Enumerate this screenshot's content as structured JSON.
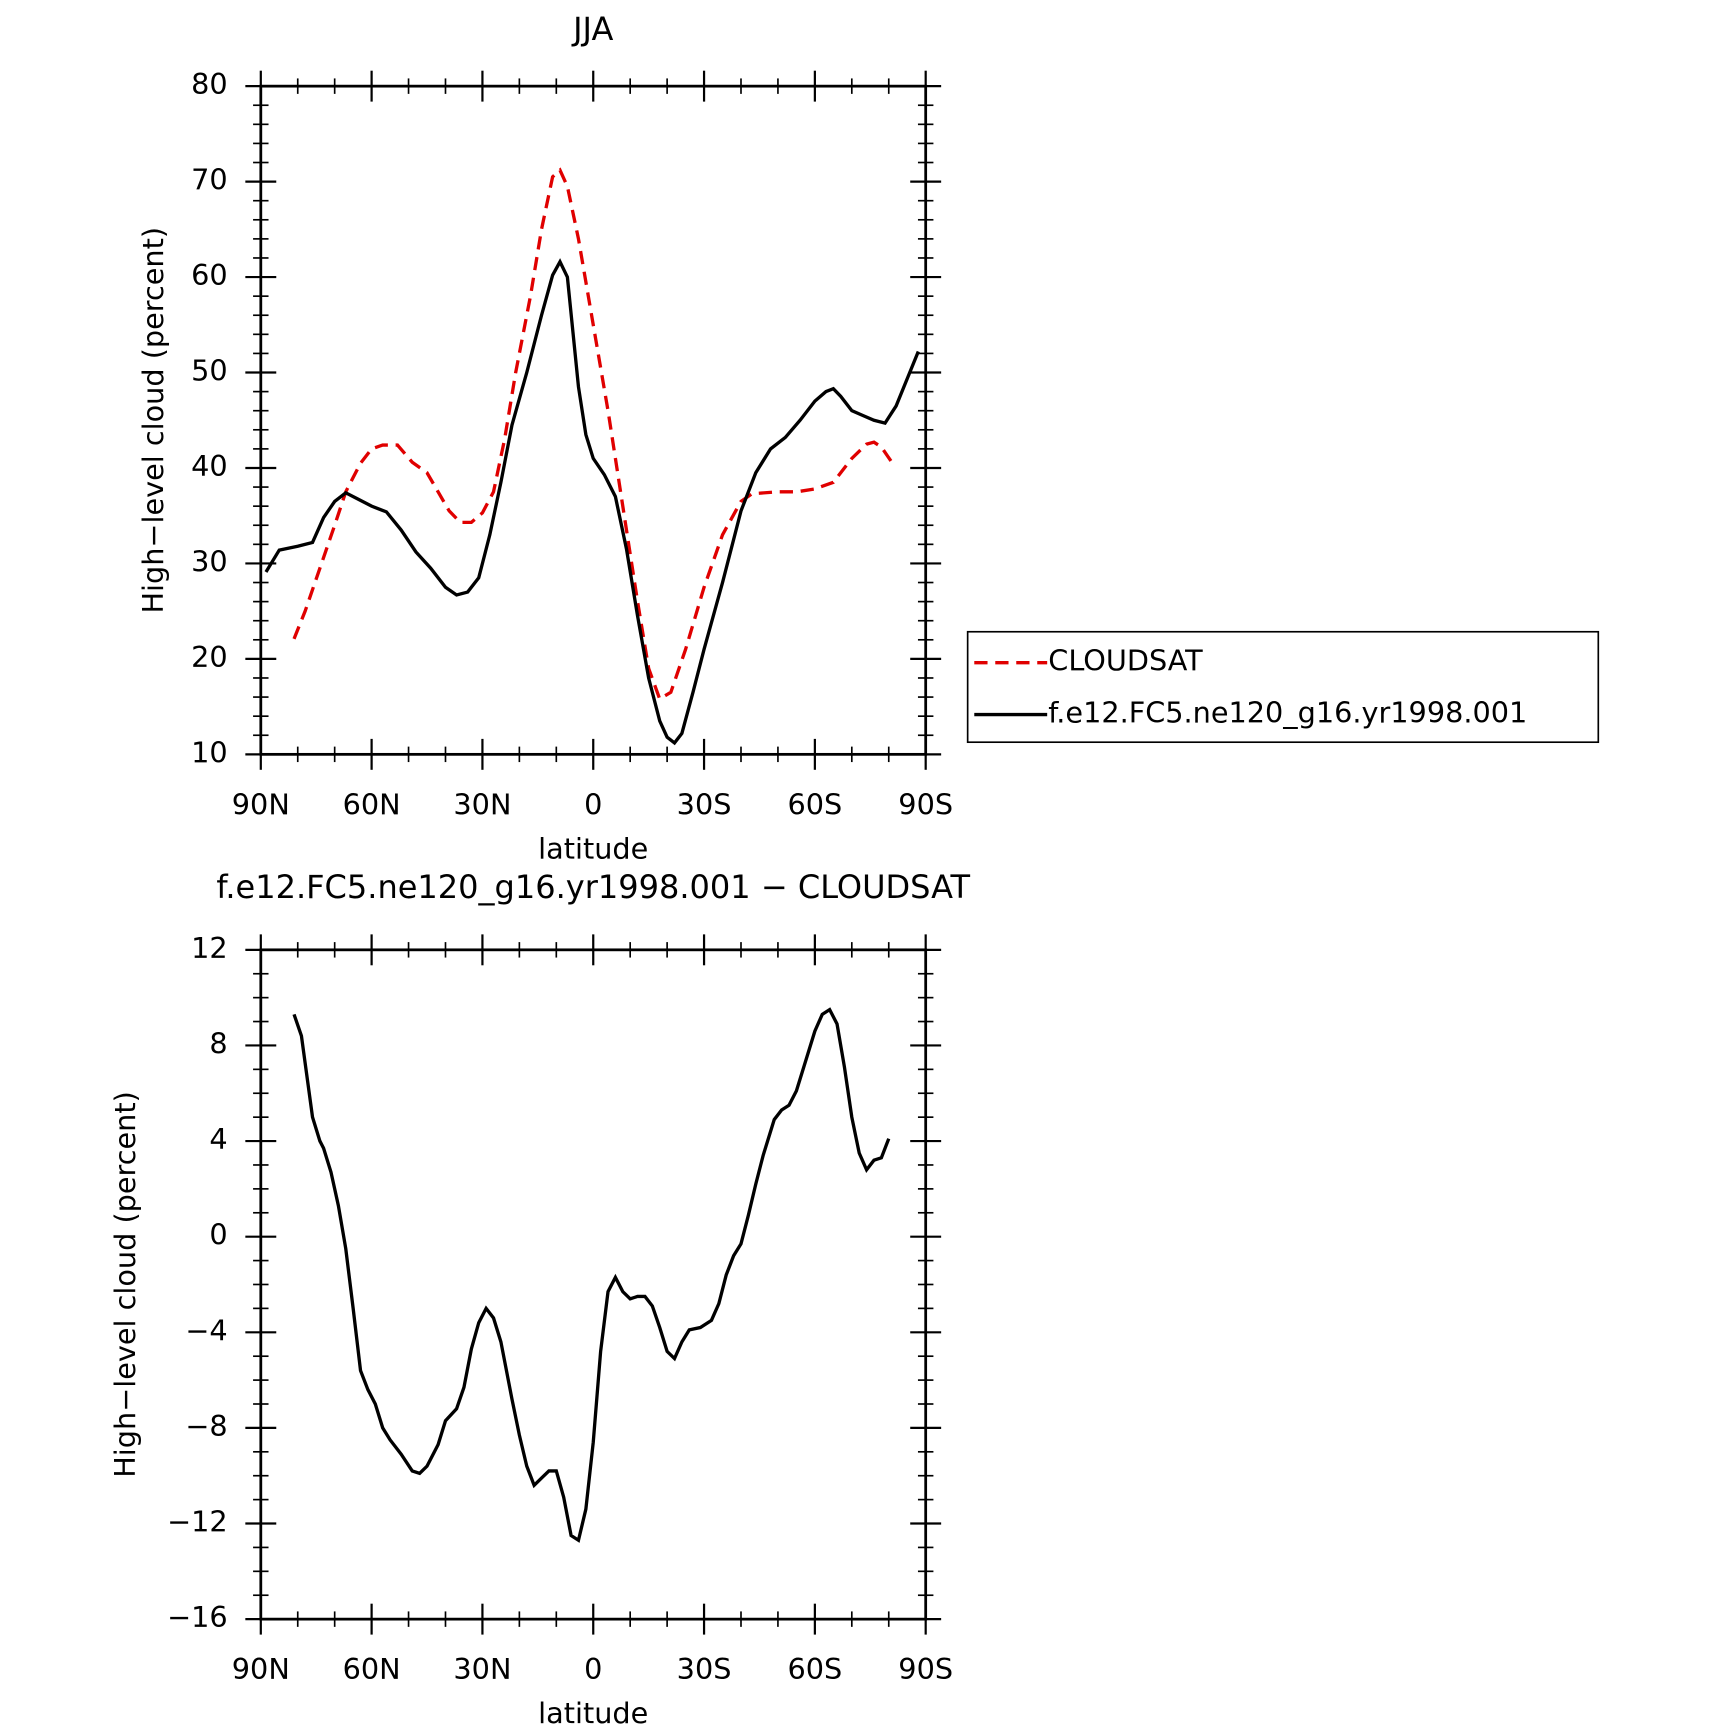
{
  "chart_data": [
    {
      "type": "line",
      "title": "JJA",
      "xlabel": "latitude",
      "ylabel": "High−level cloud (percent)",
      "xlim": [
        90,
        -90
      ],
      "xticks": [
        {
          "value": 90,
          "label": "90N"
        },
        {
          "value": 60,
          "label": "60N"
        },
        {
          "value": 30,
          "label": "30N"
        },
        0,
        {
          "value": -30,
          "label": "30S"
        },
        {
          "value": -60,
          "label": "60S"
        },
        {
          "value": -90,
          "label": "90S"
        }
      ],
      "ylim": [
        10,
        80
      ],
      "yticks": [
        10,
        20,
        30,
        40,
        50,
        60,
        70,
        80
      ],
      "legend": "right",
      "series": [
        {
          "name": "CLOUDSAT",
          "color": "#e00000",
          "line_style": "dashed",
          "x": [
            81,
            78,
            74,
            70,
            67,
            63,
            60,
            57,
            53,
            49,
            45,
            42,
            39,
            36,
            33,
            30,
            27,
            24,
            21,
            17,
            14,
            11,
            9,
            7,
            4,
            0,
            -4,
            -8,
            -12,
            -15,
            -18,
            -21,
            -25,
            -30,
            -35,
            -40,
            -43,
            -50,
            -55,
            -60,
            -65,
            -70,
            -74,
            -76,
            -78,
            -81
          ],
          "values": [
            22.1,
            25,
            29.5,
            34,
            37.5,
            40.5,
            42,
            42.4,
            42.4,
            40.6,
            39.5,
            37.5,
            35.5,
            34.3,
            34.3,
            35.3,
            37.5,
            43,
            50,
            58,
            65,
            70.5,
            71.2,
            69.5,
            64,
            55,
            46,
            36,
            26,
            19,
            15.8,
            16.5,
            21,
            27.5,
            33,
            36.5,
            37.3,
            37.5,
            37.5,
            37.8,
            38.5,
            41,
            42.5,
            42.7,
            42.2,
            40.5
          ]
        },
        {
          "name": "f.e12.FC5.ne120_g16.yr1998.001",
          "color": "#000000",
          "line_style": "solid",
          "x": [
            88.6,
            85,
            80,
            76,
            73,
            70,
            67,
            64,
            60,
            56,
            52,
            48,
            44,
            40,
            37,
            34,
            31,
            28,
            25,
            22,
            18,
            14,
            11,
            9,
            7,
            4,
            2,
            0,
            -3,
            -6,
            -9,
            -12,
            -15,
            -18,
            -20,
            -22,
            -24,
            -27,
            -30,
            -35,
            -40,
            -44,
            -48,
            -52,
            -56,
            -60,
            -63,
            -65,
            -67,
            -70,
            -73,
            -76,
            -79,
            -82,
            -88
          ],
          "values": [
            29.1,
            31.4,
            31.8,
            32.2,
            34.8,
            36.5,
            37.4,
            36.8,
            36,
            35.4,
            33.5,
            31.2,
            29.5,
            27.5,
            26.7,
            27,
            28.5,
            33,
            38.5,
            44.5,
            50,
            56,
            60.2,
            61.6,
            60,
            48.5,
            43.5,
            41,
            39.3,
            37,
            31.5,
            24.5,
            18,
            13.5,
            11.8,
            11.2,
            12.2,
            16.5,
            21,
            28,
            35.5,
            39.5,
            42,
            43.2,
            45,
            47,
            48,
            48.3,
            47.5,
            46,
            45.5,
            45,
            44.7,
            46.5,
            52.2
          ]
        }
      ]
    },
    {
      "type": "line",
      "title": "f.e12.FC5.ne120_g16.yr1998.001 − CLOUDSAT",
      "xlabel": "latitude",
      "ylabel": "High−level cloud (percent)",
      "xlim": [
        90,
        -90
      ],
      "xticks": [
        {
          "value": 90,
          "label": "90N"
        },
        {
          "value": 60,
          "label": "60N"
        },
        {
          "value": 30,
          "label": "30N"
        },
        0,
        {
          "value": -30,
          "label": "30S"
        },
        {
          "value": -60,
          "label": "60S"
        },
        {
          "value": -90,
          "label": "90S"
        }
      ],
      "ylim": [
        -16,
        12
      ],
      "yticks": [
        {
          "value": -16,
          "label": "−16"
        },
        {
          "value": -12,
          "label": "−12"
        },
        {
          "value": -8,
          "label": "−8"
        },
        {
          "value": -4,
          "label": "−4"
        },
        0,
        4,
        8,
        12
      ],
      "series": [
        {
          "color": "#000000",
          "line_style": "solid",
          "x": [
            81,
            79,
            76,
            74,
            73,
            71,
            69,
            67,
            65,
            63,
            61,
            59,
            57,
            55,
            52,
            49,
            47,
            45,
            42,
            40,
            37,
            35,
            33,
            31,
            29,
            27,
            25,
            22,
            20,
            18,
            16,
            14,
            12,
            10,
            8,
            6,
            4,
            2,
            0,
            -2,
            -4,
            -6,
            -8,
            -10,
            -12,
            -14,
            -16,
            -18,
            -20,
            -22,
            -24,
            -26,
            -29,
            -32,
            -34,
            -36,
            -38,
            -40,
            -42,
            -44,
            -46,
            -49,
            -51,
            -53,
            -55,
            -57,
            -60,
            -62,
            -64,
            -66,
            -68,
            -70,
            -72,
            -74,
            -76,
            -78,
            -80
          ],
          "values": [
            9.3,
            8.4,
            5,
            4,
            3.7,
            2.7,
            1.3,
            -0.5,
            -3,
            -5.6,
            -6.4,
            -7,
            -8,
            -8.5,
            -9.1,
            -9.8,
            -9.9,
            -9.6,
            -8.7,
            -7.7,
            -7.2,
            -6.3,
            -4.7,
            -3.6,
            -3,
            -3.4,
            -4.4,
            -6.8,
            -8.3,
            -9.6,
            -10.4,
            -10.1,
            -9.8,
            -9.8,
            -10.9,
            -12.5,
            -12.7,
            -11.4,
            -8.6,
            -4.8,
            -2.3,
            -1.7,
            -2.3,
            -2.6,
            -2.5,
            -2.5,
            -2.9,
            -3.8,
            -4.8,
            -5.1,
            -4.4,
            -3.9,
            -3.8,
            -3.5,
            -2.8,
            -1.6,
            -0.8,
            -0.3,
            0.9,
            2.2,
            3.4,
            4.9,
            5.3,
            5.5,
            6.1,
            7.1,
            8.6,
            9.3,
            9.5,
            8.9,
            7.1,
            5,
            3.5,
            2.8,
            3.2,
            3.3,
            4.1
          ]
        }
      ]
    }
  ]
}
